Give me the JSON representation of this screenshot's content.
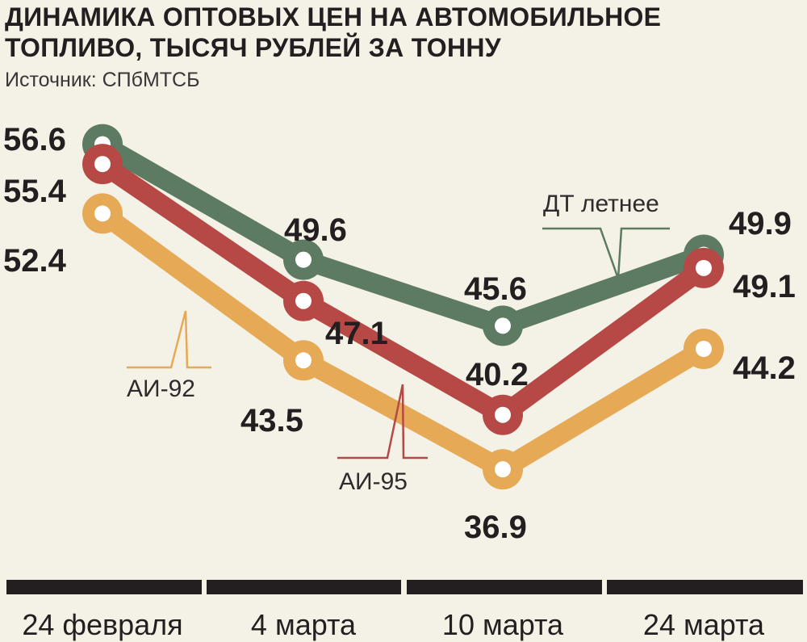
{
  "title_lines": [
    "ДИНАМИКА ОПТОВЫХ ЦЕН НА АВТОМОБИЛЬНОЕ",
    "ТОПЛИВО, ТЫСЯЧ РУБЛЕЙ ЗА ТОННУ"
  ],
  "source": "Источник: СПбМТСБ",
  "colors": {
    "background": "#f4f1e6",
    "dt": "#5d7a62",
    "ai95": "#b64845",
    "ai92": "#e6a955",
    "axis": "#231f20",
    "marker_fill": "#ffffff"
  },
  "chart_data": {
    "type": "line",
    "title": "ДИНАМИКА ОПТОВЫХ ЦЕН НА АВТОМОБИЛЬНОЕ ТОПЛИВО, ТЫСЯЧ РУБЛЕЙ ЗА ТОННУ",
    "categories": [
      "24 февраля",
      "4 марта",
      "10 марта",
      "24 марта"
    ],
    "series": [
      {
        "name": "ДТ летнее",
        "color": "#5d7a62",
        "values": [
          56.6,
          49.6,
          45.6,
          49.9
        ],
        "value_labels": [
          "56.6",
          "49.6",
          "45.6",
          "49.9"
        ]
      },
      {
        "name": "АИ-95",
        "color": "#b64845",
        "values": [
          55.4,
          47.1,
          40.2,
          49.1
        ],
        "value_labels": [
          "55.4",
          "47.1",
          "40.2",
          "49.1"
        ]
      },
      {
        "name": "АИ-92",
        "color": "#e6a955",
        "values": [
          52.4,
          43.5,
          36.9,
          44.2
        ],
        "value_labels": [
          "52.4",
          "43.5",
          "36.9",
          "44.2"
        ]
      }
    ],
    "xlabel": "",
    "ylabel": "",
    "ylim": [
      35,
      58
    ],
    "grid": false,
    "legend": "inline-callouts",
    "y_axis_visible": false
  }
}
